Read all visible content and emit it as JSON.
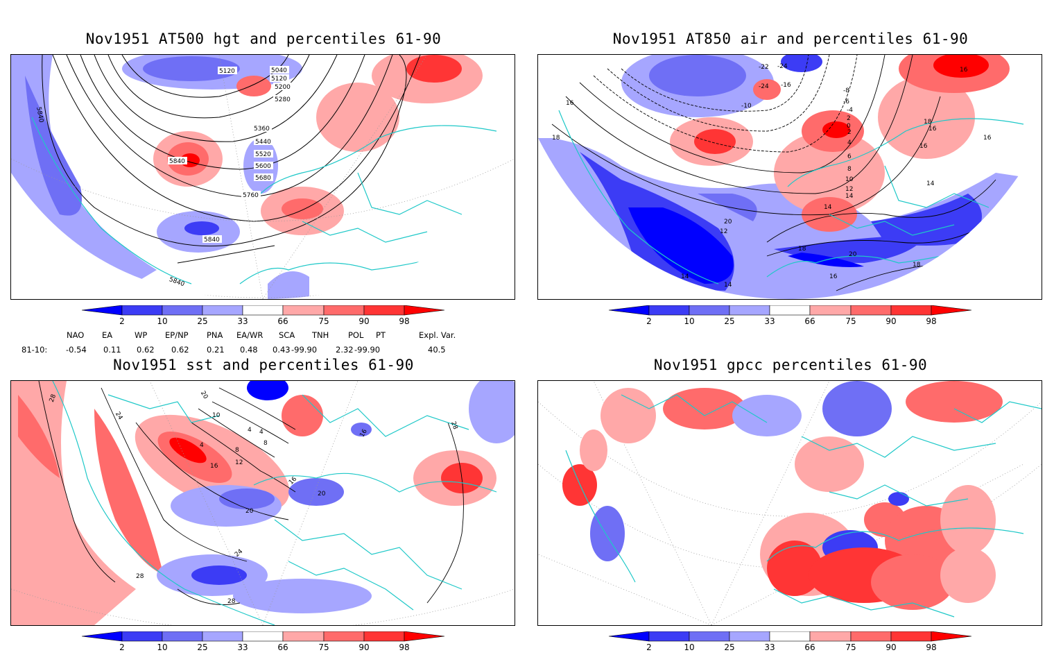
{
  "panels": [
    {
      "title": "Nov1951 AT500 hgt and percentiles 61-90",
      "contour_labels": [
        "5120",
        "5040",
        "5120",
        "5200",
        "5280",
        "5360",
        "5440",
        "5520",
        "5600",
        "5680",
        "5840",
        "5760",
        "5840",
        "5840",
        "5840"
      ]
    },
    {
      "title": "Nov1951 AT850 air and percentiles 61-90",
      "contour_labels": [
        "-22",
        "-24",
        "-24",
        "-16",
        "-10",
        "-8",
        "-6",
        "-4",
        "2",
        "0",
        "2",
        "4",
        "6",
        "8",
        "10",
        "12",
        "14",
        "16",
        "18",
        "16",
        "16",
        "16",
        "14",
        "20",
        "12",
        "14",
        "18",
        "20",
        "18",
        "16",
        "14",
        "14",
        "16",
        "18"
      ]
    },
    {
      "title": "Nov1951 sst and percentiles 61-90",
      "contour_labels": [
        "28",
        "24",
        "20",
        "10",
        "4",
        "4",
        "8",
        "4",
        "8",
        "16",
        "12",
        "16",
        "20",
        "20",
        "24",
        "28",
        "28",
        "28",
        "16"
      ]
    },
    {
      "title": "Nov1951 gpcc percentiles 61-90",
      "contour_labels": []
    }
  ],
  "colorbar": {
    "ticks": [
      "2",
      "10",
      "25",
      "33",
      "66",
      "75",
      "90",
      "98"
    ],
    "colors": [
      "#0000ff",
      "#3c3cf5",
      "#6f6ff5",
      "#a6a6ff",
      "#ffffff",
      "#ffa8a8",
      "#ff6b6b",
      "#ff3535",
      "#ff0000"
    ]
  },
  "indices": {
    "headers": [
      "NAO",
      "EA",
      "WP",
      "EP/NP",
      "PNA",
      "EA/WR",
      "SCA",
      "TNH",
      "POL",
      "PT",
      "Expl. Var."
    ],
    "row_label": "81-10:",
    "values": [
      "-0.54",
      "0.11",
      "0.62",
      "0.62",
      "0.21",
      "0.48",
      "0.43",
      "-99.90",
      "2.32",
      "-99.90",
      "40.5"
    ]
  },
  "colors": {
    "coast": "#1ec8c8",
    "contour": "#000000",
    "grid": "#999999"
  }
}
